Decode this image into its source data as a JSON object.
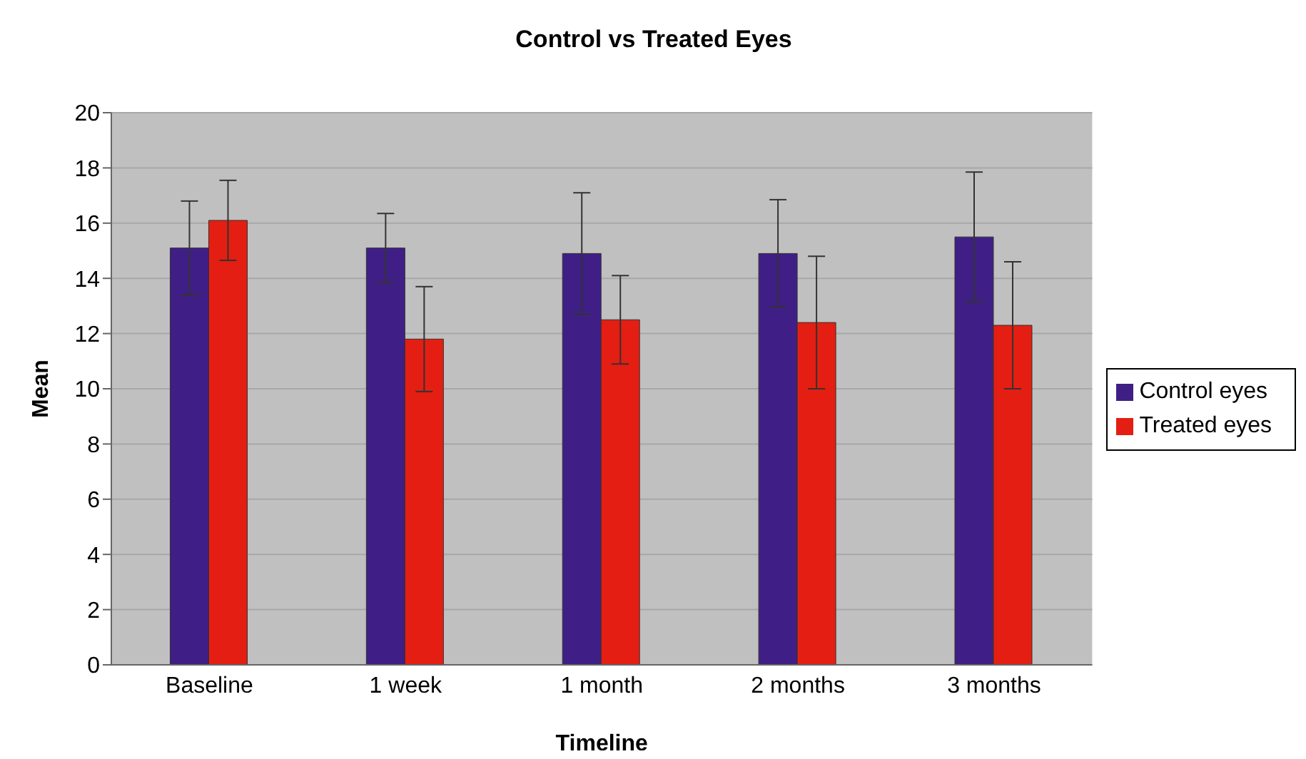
{
  "chart_data": {
    "type": "bar",
    "title": "Control vs Treated Eyes",
    "xlabel": "Timeline",
    "ylabel": "Mean",
    "categories": [
      "Baseline",
      "1 week",
      "1 month",
      "2 months",
      "3 months"
    ],
    "series": [
      {
        "name": "Control eyes",
        "color": "#3f1f86",
        "values": [
          15.1,
          15.1,
          14.9,
          14.9,
          15.5
        ],
        "errors": [
          1.7,
          1.25,
          2.2,
          1.95,
          2.35
        ]
      },
      {
        "name": "Treated eyes",
        "color": "#e41e12",
        "values": [
          16.1,
          11.8,
          12.5,
          12.4,
          12.3
        ],
        "errors": [
          1.45,
          1.9,
          1.6,
          2.4,
          2.3
        ]
      }
    ],
    "ylim": [
      0,
      20
    ],
    "yticks": [
      0,
      2,
      4,
      6,
      8,
      10,
      12,
      14,
      16,
      18,
      20
    ],
    "grid": "y",
    "legend": "right"
  }
}
